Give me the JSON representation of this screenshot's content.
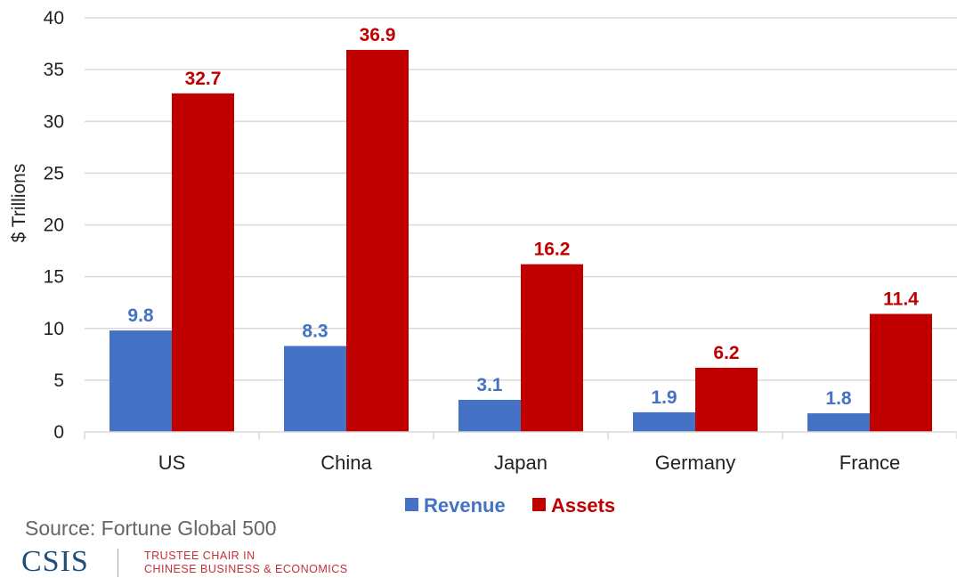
{
  "chart_data": {
    "type": "bar",
    "title": "",
    "xlabel": "",
    "ylabel": "$ Trillions",
    "ylim": [
      0,
      40
    ],
    "yticks": [
      0,
      5,
      10,
      15,
      20,
      25,
      30,
      35,
      40
    ],
    "grid": true,
    "legend_position": "bottom",
    "categories": [
      "US",
      "China",
      "Japan",
      "Germany",
      "France"
    ],
    "series": [
      {
        "name": "Revenue",
        "color": "#4472c4",
        "values": [
          9.8,
          8.3,
          3.1,
          1.9,
          1.8
        ],
        "labels": [
          "9.8",
          "8.3",
          "3.1",
          "1.9",
          "1.8"
        ]
      },
      {
        "name": "Assets",
        "color": "#c00000",
        "values": [
          32.7,
          36.9,
          16.2,
          6.2,
          11.4
        ],
        "labels": [
          "32.7",
          "36.9",
          "16.2",
          "6.2",
          "11.4"
        ]
      }
    ]
  },
  "footer": {
    "source": "Source:  Fortune Global 500",
    "logo": "CSIS",
    "chair_line1": "TRUSTEE CHAIR IN",
    "chair_line2": "CHINESE BUSINESS & ECONOMICS"
  }
}
